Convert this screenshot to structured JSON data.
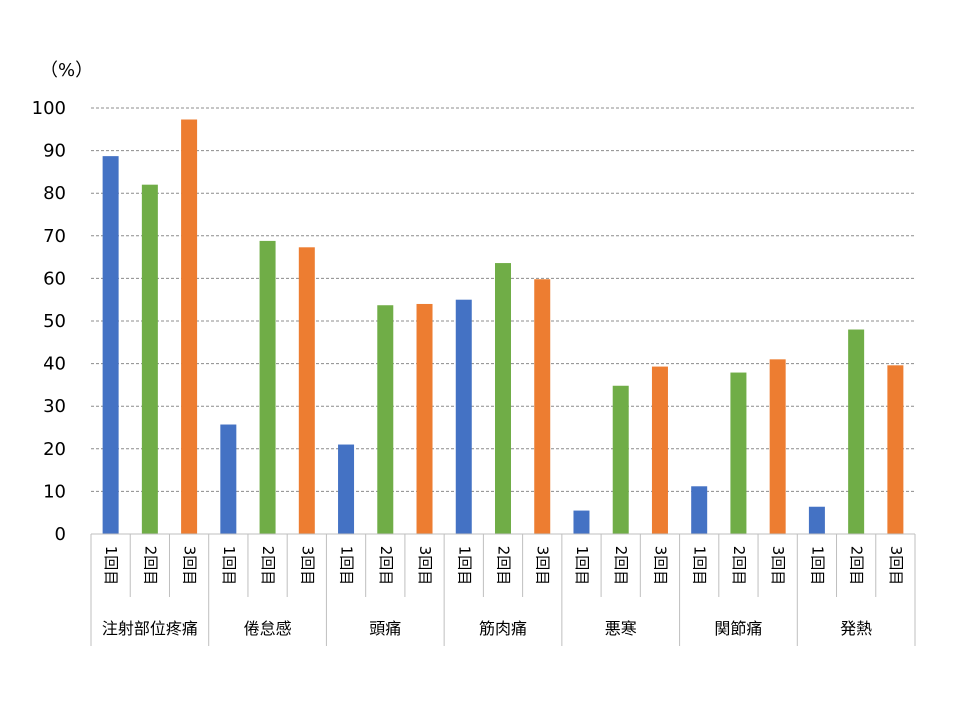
{
  "chart_data": {
    "type": "bar",
    "unit_label": "（%）",
    "ylim": [
      0,
      100
    ],
    "yticks": [
      0,
      10,
      20,
      30,
      40,
      50,
      60,
      70,
      80,
      90,
      100
    ],
    "grid": true,
    "dose_labels": [
      "1回目",
      "2回目",
      "3回目"
    ],
    "colors": [
      "#4472C4",
      "#70AD47",
      "#ED7D31"
    ],
    "categories": [
      "注射部位疼痛",
      "倦怠感",
      "頭痛",
      "筋肉痛",
      "悪寒",
      "関節痛",
      "発熱"
    ],
    "values": [
      [
        88.7,
        82.0,
        97.3
      ],
      [
        25.7,
        68.8,
        67.3
      ],
      [
        21.0,
        53.7,
        54.0
      ],
      [
        55.0,
        63.6,
        59.8
      ],
      [
        5.5,
        34.8,
        39.3
      ],
      [
        11.2,
        37.9,
        41.0
      ],
      [
        6.4,
        48.0,
        39.6
      ]
    ]
  }
}
